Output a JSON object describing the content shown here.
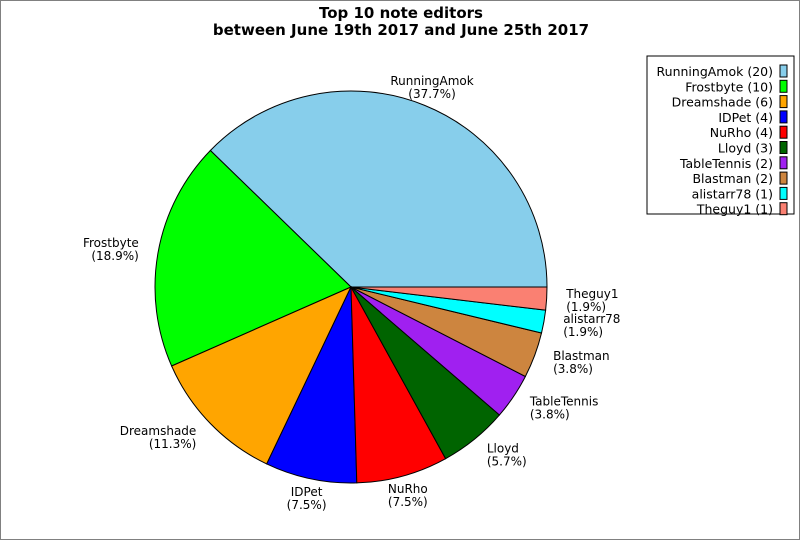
{
  "chart_data": {
    "type": "pie",
    "title": [
      "Top 10 note editors",
      "between June 19th 2017 and June 25th 2017"
    ],
    "start_angle_deg": 0,
    "direction": "counterclockwise",
    "legend_position": "top-right",
    "slices": [
      {
        "label": "RunningAmok",
        "value": 20,
        "pct": "37.7%",
        "legend": "RunningAmok (20)",
        "color": "#87ceeb"
      },
      {
        "label": "Frostbyte",
        "value": 10,
        "pct": "18.9%",
        "legend": "Frostbyte (10)",
        "color": "#00ff00"
      },
      {
        "label": "Dreamshade",
        "value": 6,
        "pct": "11.3%",
        "legend": "Dreamshade (6)",
        "color": "#ffa500"
      },
      {
        "label": "IDPet",
        "value": 4,
        "pct": "7.5%",
        "legend": "IDPet (4)",
        "color": "#0000ff"
      },
      {
        "label": "NuRho",
        "value": 4,
        "pct": "7.5%",
        "legend": "NuRho (4)",
        "color": "#ff0000"
      },
      {
        "label": "Lloyd",
        "value": 3,
        "pct": "5.7%",
        "legend": "Lloyd (3)",
        "color": "#006400"
      },
      {
        "label": "TableTennis",
        "value": 2,
        "pct": "3.8%",
        "legend": "TableTennis (2)",
        "color": "#a020f0"
      },
      {
        "label": "Blastman",
        "value": 2,
        "pct": "3.8%",
        "legend": "Blastman (2)",
        "color": "#cd853f"
      },
      {
        "label": "alistarr78",
        "value": 1,
        "pct": "1.9%",
        "legend": "alistarr78 (1)",
        "color": "#00ffff"
      },
      {
        "label": "Theguy1",
        "value": 1,
        "pct": "1.9%",
        "legend": "Theguy1 (1)",
        "color": "#fa8072"
      }
    ]
  }
}
